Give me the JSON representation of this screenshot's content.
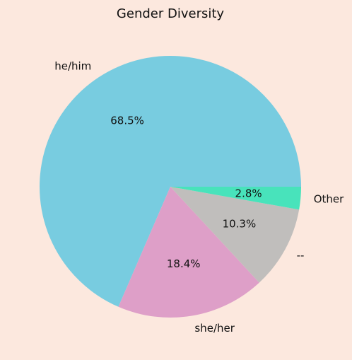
{
  "chart_data": {
    "type": "pie",
    "title": "Gender Diversity",
    "categories": [
      "he/him",
      "she/her",
      "--",
      "Other"
    ],
    "values": [
      68.5,
      18.4,
      10.3,
      2.8
    ],
    "percent_labels": [
      "68.5%",
      "18.4%",
      "10.3%",
      "2.8%"
    ],
    "colors": [
      "#78cce0",
      "#de9fc8",
      "#c0bebc",
      "#48e3bb"
    ]
  }
}
